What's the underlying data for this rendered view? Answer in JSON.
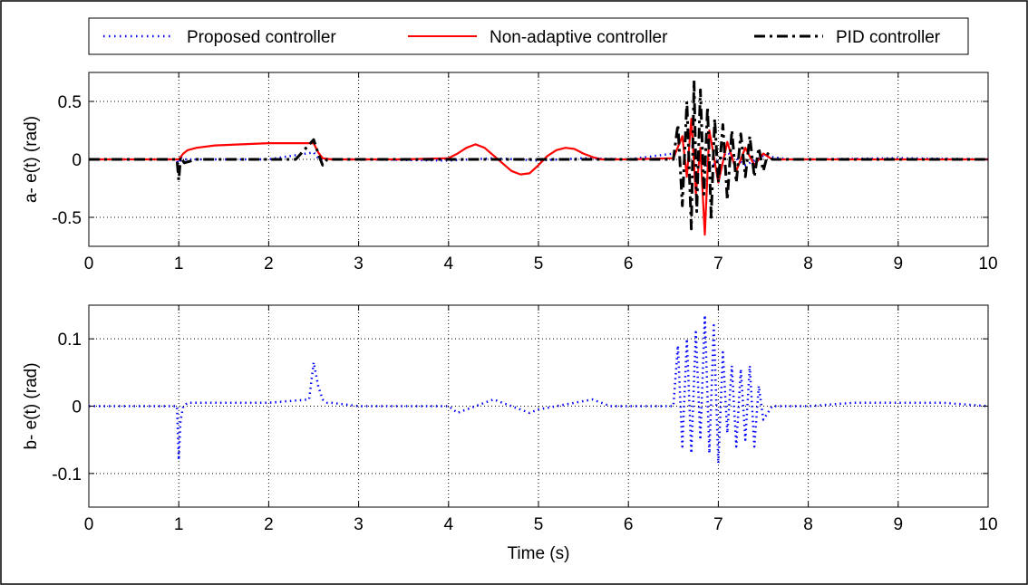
{
  "legend": {
    "items": [
      {
        "label": "Proposed controller",
        "color": "#0000ff",
        "style": "dotted"
      },
      {
        "label": "Non-adaptive controller",
        "color": "#ff0000",
        "style": "solid"
      },
      {
        "label": "PID controller",
        "color": "#000000",
        "style": "dash-dot"
      }
    ]
  },
  "chart_data": [
    {
      "type": "line",
      "title": "",
      "xlabel": "",
      "ylabel": "a- e(t) (rad)",
      "xlim": [
        0,
        10
      ],
      "ylim": [
        -0.75,
        0.75
      ],
      "xticks": [
        0,
        1,
        2,
        3,
        4,
        5,
        6,
        7,
        8,
        9,
        10
      ],
      "yticks": [
        -0.5,
        0,
        0.5
      ],
      "ytick_labels": [
        "-0.5",
        "0",
        "0.5"
      ],
      "grid": true,
      "series": [
        {
          "name": "Proposed controller",
          "color": "#0000ff",
          "x": [
            0,
            0.5,
            0.98,
            1.0,
            1.02,
            1.05,
            1.5,
            2.0,
            2.5,
            2.55,
            2.6,
            3.0,
            4.0,
            4.5,
            5.0,
            5.5,
            6.0,
            6.5,
            6.7,
            6.9,
            7.1,
            7.3,
            7.5,
            7.8,
            8.0,
            9.0,
            10.0
          ],
          "y": [
            0,
            0,
            0,
            -0.08,
            0.02,
            0,
            0,
            0,
            0.06,
            0.01,
            0,
            0,
            -0.01,
            0.01,
            -0.01,
            0.01,
            0,
            0.05,
            0.13,
            -0.08,
            0.06,
            -0.05,
            0.03,
            0,
            0,
            0.01,
            0
          ]
        },
        {
          "name": "Non-adaptive controller",
          "color": "#ff0000",
          "x": [
            0,
            0.5,
            1.0,
            1.05,
            1.1,
            1.2,
            1.4,
            1.7,
            2.0,
            2.3,
            2.5,
            2.55,
            2.6,
            2.7,
            3.0,
            3.5,
            4.0,
            4.1,
            4.2,
            4.3,
            4.4,
            4.55,
            4.7,
            4.8,
            4.9,
            5.0,
            5.1,
            5.2,
            5.3,
            5.4,
            5.5,
            5.6,
            5.7,
            6.0,
            6.5,
            6.6,
            6.65,
            6.7,
            6.75,
            6.8,
            6.85,
            6.9,
            7.0,
            7.1,
            7.2,
            7.3,
            7.4,
            7.5,
            7.6,
            8.0,
            9.0,
            10.0
          ],
          "y": [
            0,
            0,
            0,
            0.05,
            0.08,
            0.1,
            0.12,
            0.13,
            0.14,
            0.14,
            0.14,
            0.06,
            0.01,
            0,
            0,
            0,
            0.01,
            0.05,
            0.1,
            0.13,
            0.1,
            0.0,
            -0.1,
            -0.13,
            -0.12,
            -0.05,
            0.03,
            0.08,
            0.1,
            0.09,
            0.05,
            0.02,
            0,
            0,
            0.01,
            0.2,
            -0.15,
            0.35,
            -0.3,
            0.1,
            -0.65,
            0.25,
            -0.2,
            0.15,
            -0.1,
            0.1,
            -0.05,
            0.05,
            0,
            0,
            0,
            0
          ]
        },
        {
          "name": "PID controller",
          "color": "#000000",
          "x": [
            0,
            0.5,
            0.98,
            1.0,
            1.02,
            1.06,
            1.2,
            1.5,
            2.0,
            2.3,
            2.5,
            2.55,
            2.6,
            2.65,
            2.7,
            3.0,
            3.5,
            4.0,
            4.5,
            5.0,
            5.5,
            6.0,
            6.5,
            6.55,
            6.6,
            6.65,
            6.7,
            6.73,
            6.76,
            6.8,
            6.84,
            6.88,
            6.92,
            6.96,
            7.0,
            7.05,
            7.1,
            7.15,
            7.2,
            7.25,
            7.3,
            7.35,
            7.4,
            7.45,
            7.5,
            7.55,
            7.6,
            8.0,
            9.0,
            10.0
          ],
          "y": [
            0,
            0,
            0,
            -0.18,
            0.02,
            -0.03,
            0,
            0,
            0,
            0,
            0.17,
            0.05,
            -0.05,
            0,
            0,
            0,
            0,
            0,
            0,
            0,
            0,
            0,
            0,
            0.3,
            -0.4,
            0.5,
            -0.6,
            0.68,
            -0.45,
            0.6,
            -0.3,
            0.45,
            -0.5,
            0.35,
            -0.2,
            0.3,
            -0.35,
            0.25,
            -0.2,
            0.22,
            -0.15,
            0.2,
            -0.15,
            0.1,
            -0.1,
            0.05,
            0,
            0,
            0,
            0
          ]
        }
      ]
    },
    {
      "type": "line",
      "title": "",
      "xlabel": "Time (s)",
      "ylabel": "b- e(t) (rad)",
      "xlim": [
        0,
        10
      ],
      "ylim": [
        -0.15,
        0.15
      ],
      "xticks": [
        0,
        1,
        2,
        3,
        4,
        5,
        6,
        7,
        8,
        9,
        10
      ],
      "yticks": [
        -0.1,
        0,
        0.1
      ],
      "ytick_labels": [
        "-0.1",
        "0",
        "0.1"
      ],
      "grid": true,
      "series": [
        {
          "name": "Proposed controller",
          "color": "#0000ff",
          "x": [
            0,
            0.5,
            0.98,
            1.0,
            1.02,
            1.05,
            1.1,
            1.5,
            2.0,
            2.45,
            2.5,
            2.55,
            2.6,
            2.65,
            2.7,
            3.0,
            3.5,
            4.0,
            4.1,
            4.3,
            4.5,
            4.7,
            4.9,
            5.0,
            5.2,
            5.4,
            5.6,
            5.8,
            6.0,
            6.3,
            6.5,
            6.55,
            6.6,
            6.65,
            6.7,
            6.75,
            6.8,
            6.85,
            6.9,
            6.95,
            7.0,
            7.05,
            7.1,
            7.15,
            7.2,
            7.25,
            7.3,
            7.35,
            7.4,
            7.45,
            7.5,
            7.6,
            8.0,
            8.5,
            9.0,
            9.5,
            10.0
          ],
          "y": [
            0,
            0,
            0,
            -0.08,
            -0.02,
            0.0,
            0.005,
            0.005,
            0.005,
            0.01,
            0.065,
            0.03,
            0.01,
            0.005,
            0.005,
            0,
            0,
            0,
            -0.01,
            0.0,
            0.01,
            0.0,
            -0.01,
            -0.005,
            0.0,
            0.005,
            0.01,
            0.0,
            0.0,
            0.0,
            0.0,
            0.09,
            -0.06,
            0.1,
            -0.07,
            0.11,
            -0.05,
            0.135,
            -0.07,
            0.12,
            -0.085,
            0.08,
            -0.04,
            0.06,
            -0.06,
            0.055,
            -0.05,
            0.06,
            -0.06,
            0.03,
            -0.02,
            0.0,
            0.0,
            0.005,
            0.005,
            0.005,
            0.0
          ]
        }
      ]
    }
  ]
}
